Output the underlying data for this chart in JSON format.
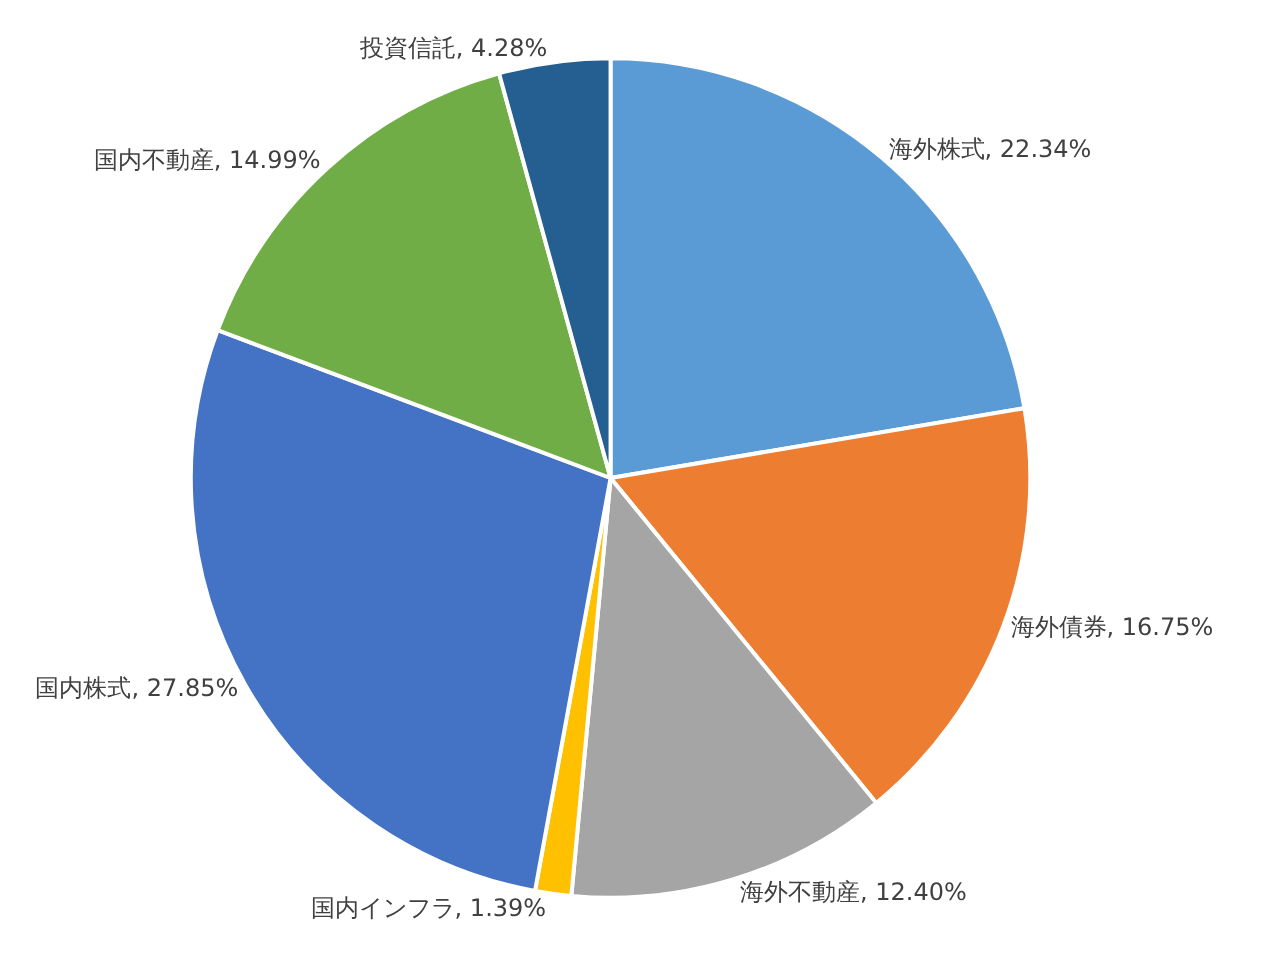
{
  "chart_data": {
    "type": "pie",
    "categories": [
      "海外株式",
      "海外債券",
      "海外不動産",
      "国内インフラ",
      "国内株式",
      "国内不動産",
      "投資信託"
    ],
    "values": [
      22.34,
      16.75,
      12.4,
      1.39,
      27.85,
      14.99,
      4.28
    ],
    "value_labels": [
      "22.34%",
      "16.75%",
      "12.40%",
      "1.39%",
      "27.85%",
      "14.99%",
      "4.28%"
    ],
    "colors": [
      "#5b9bd5",
      "#ed7d31",
      "#a5a5a5",
      "#ffc000",
      "#4472c4",
      "#70ad47",
      "#255e91"
    ],
    "legend": false
  }
}
